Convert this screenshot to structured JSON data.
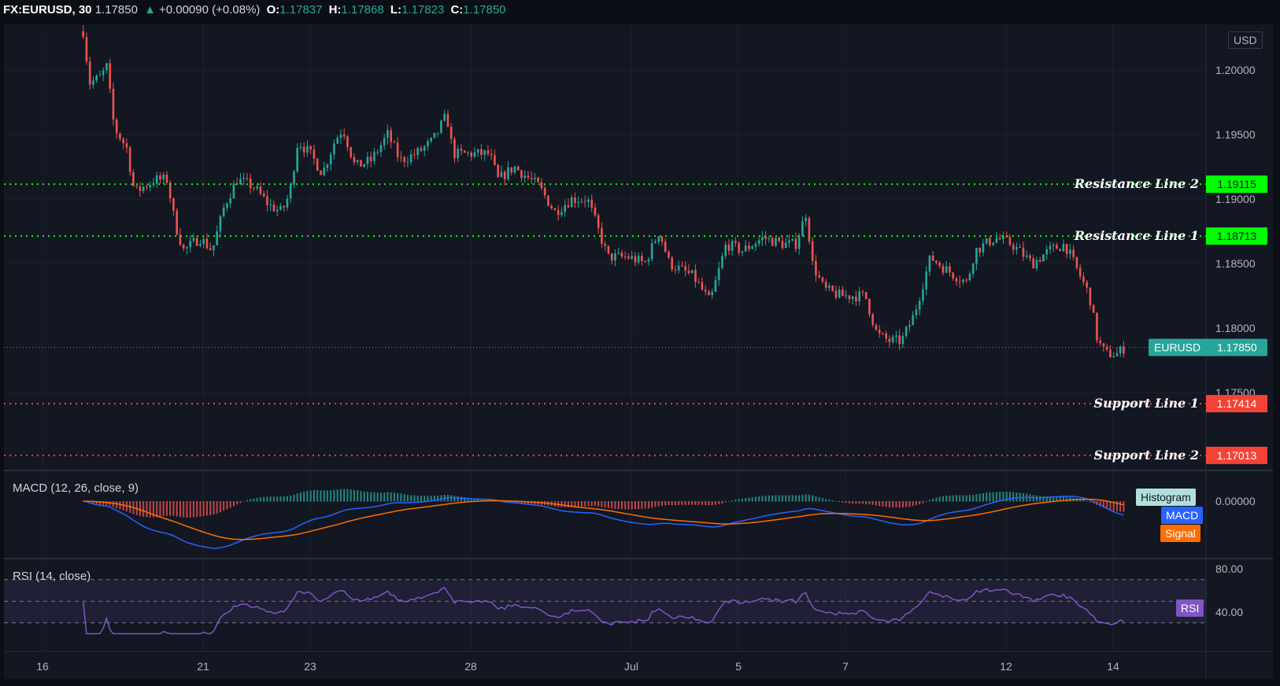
{
  "header": {
    "symbol": "FX:EURUSD, 30",
    "last": "1.17850",
    "change": "+0.00090 (+0.08%)",
    "o_label": "O:",
    "o": "1.17837",
    "h_label": "H:",
    "h": "1.17868",
    "l_label": "L:",
    "l": "1.17823",
    "c_label": "C:",
    "c": "1.17850"
  },
  "currency": "USD",
  "price_axis": [
    "1.20000",
    "1.19500",
    "1.19000",
    "1.18500",
    "1.18000",
    "1.17500"
  ],
  "price_axis_values": [
    1.2,
    1.195,
    1.19,
    1.185,
    1.18,
    1.175
  ],
  "levels": [
    {
      "label": "Resistance Line 2",
      "value": "1.19115",
      "price": 1.19115,
      "color": "#00ff00"
    },
    {
      "label": "Resistance Line 1",
      "value": "1.18713",
      "price": 1.18713,
      "color": "#00ff00"
    },
    {
      "label": "Support Line 1",
      "value": "1.17414",
      "price": 1.17414,
      "color": "#f44336"
    },
    {
      "label": "Support Line 2",
      "value": "1.17013",
      "price": 1.17013,
      "color": "#f44336"
    }
  ],
  "last_tag": {
    "label": "EURUSD",
    "value": "1.17850",
    "price": 1.1785
  },
  "macd": {
    "title": "MACD (12, 26, close, 9)",
    "axis": "0.00000",
    "legend": [
      "Histogram",
      "MACD",
      "Signal"
    ]
  },
  "rsi": {
    "title": "RSI (14, close)",
    "axis": [
      "80.00",
      "40.00"
    ],
    "legend": "RSI"
  },
  "time_axis": [
    {
      "label": "16",
      "t": 0
    },
    {
      "label": "21",
      "t": 3
    },
    {
      "label": "23",
      "t": 5
    },
    {
      "label": "28",
      "t": 8
    },
    {
      "label": "Jul",
      "t": 11
    },
    {
      "label": "5",
      "t": 13
    },
    {
      "label": "7",
      "t": 15
    },
    {
      "label": "12",
      "t": 18
    },
    {
      "label": "14",
      "t": 20
    }
  ],
  "colors": {
    "up": "#26a69a",
    "down": "#ef5350",
    "macd": "#2962ff",
    "signal": "#ff6d00",
    "rsi": "#7e57c2"
  },
  "chart_data": {
    "type": "candlestick",
    "unit_x": "trading days since Jun 16",
    "price_path": [
      [
        0.76,
        1.203
      ],
      [
        0.88,
        1.199
      ],
      [
        1.11,
        1.1995
      ],
      [
        1.19,
        1.2005
      ],
      [
        1.34,
        1.1955
      ],
      [
        1.57,
        1.194
      ],
      [
        1.72,
        1.1905
      ],
      [
        2.1,
        1.1915
      ],
      [
        2.33,
        1.1915
      ],
      [
        2.48,
        1.188
      ],
      [
        2.64,
        1.186
      ],
      [
        2.94,
        1.187
      ],
      [
        3.17,
        1.186
      ],
      [
        3.4,
        1.1895
      ],
      [
        3.63,
        1.1915
      ],
      [
        3.93,
        1.191
      ],
      [
        4.24,
        1.1895
      ],
      [
        4.47,
        1.189
      ],
      [
        4.62,
        1.1905
      ],
      [
        4.77,
        1.1945
      ],
      [
        5.0,
        1.1935
      ],
      [
        5.23,
        1.192
      ],
      [
        5.46,
        1.1945
      ],
      [
        5.61,
        1.1955
      ],
      [
        5.84,
        1.1925
      ],
      [
        6.14,
        1.193
      ],
      [
        6.45,
        1.195
      ],
      [
        6.68,
        1.193
      ],
      [
        6.98,
        1.1935
      ],
      [
        7.29,
        1.1945
      ],
      [
        7.55,
        1.1965
      ],
      [
        7.67,
        1.1935
      ],
      [
        7.97,
        1.1935
      ],
      [
        8.35,
        1.1935
      ],
      [
        8.51,
        1.1915
      ],
      [
        8.81,
        1.1925
      ],
      [
        9.27,
        1.191
      ],
      [
        9.57,
        1.189
      ],
      [
        9.88,
        1.19
      ],
      [
        10.18,
        1.19
      ],
      [
        10.56,
        1.1855
      ],
      [
        10.95,
        1.1855
      ],
      [
        11.25,
        1.185
      ],
      [
        11.52,
        1.1875
      ],
      [
        11.71,
        1.185
      ],
      [
        12.16,
        1.184
      ],
      [
        12.47,
        1.182
      ],
      [
        12.77,
        1.1865
      ],
      [
        13.08,
        1.186
      ],
      [
        13.46,
        1.187
      ],
      [
        13.84,
        1.1865
      ],
      [
        14.07,
        1.1865
      ],
      [
        14.27,
        1.189
      ],
      [
        14.38,
        1.185
      ],
      [
        14.6,
        1.183
      ],
      [
        14.91,
        1.1825
      ],
      [
        15.37,
        1.1825
      ],
      [
        15.59,
        1.1795
      ],
      [
        15.82,
        1.179
      ],
      [
        16.05,
        1.179
      ],
      [
        16.28,
        1.181
      ],
      [
        16.59,
        1.1855
      ],
      [
        16.89,
        1.1845
      ],
      [
        17.27,
        1.1835
      ],
      [
        17.42,
        1.186
      ],
      [
        17.8,
        1.187
      ],
      [
        18.11,
        1.1865
      ],
      [
        18.49,
        1.185
      ],
      [
        18.8,
        1.186
      ],
      [
        19.1,
        1.1865
      ],
      [
        19.33,
        1.1845
      ],
      [
        19.56,
        1.1825
      ],
      [
        19.71,
        1.179
      ],
      [
        19.86,
        1.178
      ],
      [
        20.09,
        1.178
      ],
      [
        20.21,
        1.1785
      ]
    ]
  }
}
